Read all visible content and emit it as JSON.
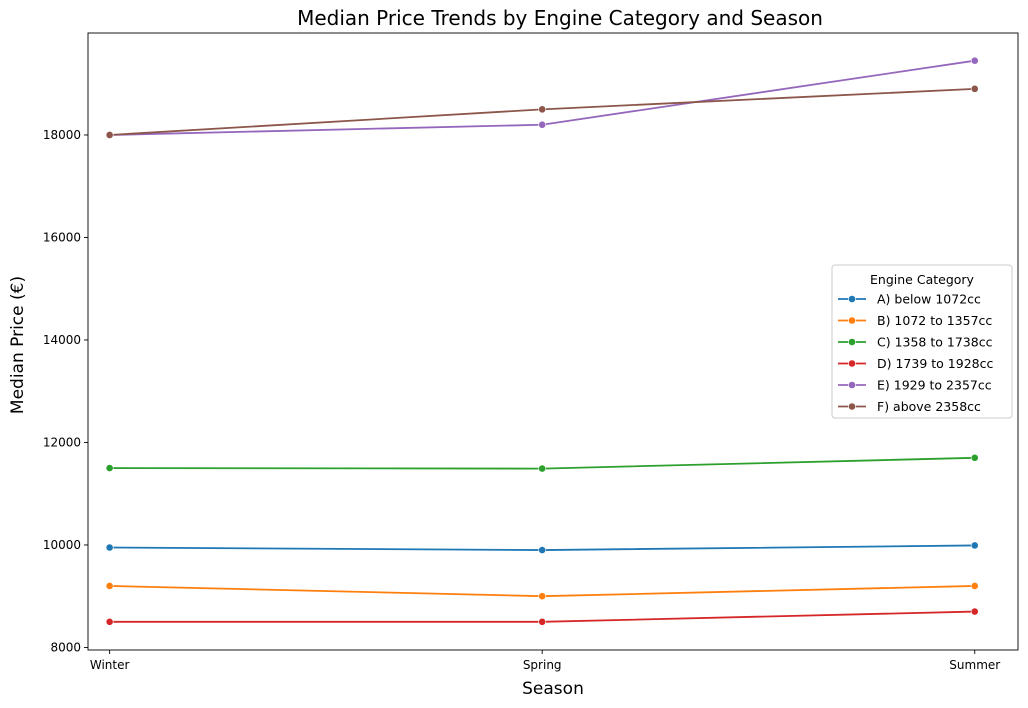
{
  "chart_data": {
    "type": "line",
    "title": "Median Price Trends by Engine Category and Season",
    "xlabel": "Season",
    "ylabel": "Median Price (€)",
    "categories": [
      "Winter",
      "Spring",
      "Summer"
    ],
    "ylim": [
      7950,
      19990
    ],
    "yticks": [
      8000,
      10000,
      12000,
      14000,
      16000,
      18000
    ],
    "grid": false,
    "legend": {
      "title": "Engine Category",
      "placement": "center-right"
    },
    "series": [
      {
        "name": "A) below 1072cc",
        "color": "#1f77b4",
        "values": [
          9950,
          9900,
          9990
        ]
      },
      {
        "name": "B) 1072 to 1357cc",
        "color": "#ff7f0e",
        "values": [
          9200,
          9000,
          9200
        ]
      },
      {
        "name": "C) 1358 to 1738cc",
        "color": "#2ca02c",
        "values": [
          11500,
          11490,
          11700
        ]
      },
      {
        "name": "D) 1739 to 1928cc",
        "color": "#d62728",
        "values": [
          8500,
          8500,
          8700
        ]
      },
      {
        "name": "E) 1929 to 2357cc",
        "color": "#9467bd",
        "values": [
          18000,
          18200,
          19450
        ]
      },
      {
        "name": "F) above 2358cc",
        "color": "#8c564b",
        "values": [
          18000,
          18500,
          18900
        ]
      }
    ]
  }
}
